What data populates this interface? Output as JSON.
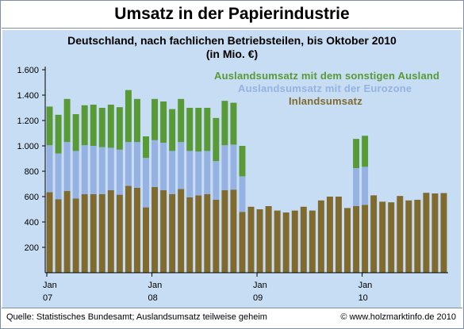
{
  "header": {
    "title": "Umsatz in der Papierindustrie",
    "subtitle_line1": "Deutschland, nach fachlichen Betriebsteilen, bis Oktober 2010",
    "subtitle_line2": "(in Mio. €)"
  },
  "footer": {
    "source": "Quelle: Statistisches Bundesamt;  Auslandsumsatz teilweise geheim",
    "copyright": "© www.holzmarktinfo.de 2010"
  },
  "colors": {
    "inland": "#816a2d",
    "eurozone": "#95b2e2",
    "other_foreign": "#589a36",
    "plot_background": "#c7ddf3"
  },
  "chart_data": {
    "type": "bar",
    "stacked": true,
    "title": "Umsatz in der Papierindustrie",
    "subtitle": "Deutschland, nach fachlichen Betriebsteilen, bis Oktober 2010 (in Mio. €)",
    "ylim": [
      0,
      1600
    ],
    "yticks": [
      "200",
      "400",
      "600",
      "800",
      "1.000",
      "1.200",
      "1.400",
      "1.600"
    ],
    "grid": false,
    "legend_position": "top-right",
    "x_tick_labels": [
      {
        "month": "Jan",
        "year": "07",
        "index": 0
      },
      {
        "month": "Jan",
        "year": "08",
        "index": 12
      },
      {
        "month": "Jan",
        "year": "09",
        "index": 24
      },
      {
        "month": "Jan",
        "year": "10",
        "index": 36
      }
    ],
    "categories": [
      "2007-01",
      "2007-02",
      "2007-03",
      "2007-04",
      "2007-05",
      "2007-06",
      "2007-07",
      "2007-08",
      "2007-09",
      "2007-10",
      "2007-11",
      "2007-12",
      "2008-01",
      "2008-02",
      "2008-03",
      "2008-04",
      "2008-05",
      "2008-06",
      "2008-07",
      "2008-08",
      "2008-09",
      "2008-10",
      "2008-11",
      "2008-12",
      "2009-01",
      "2009-02",
      "2009-03",
      "2009-04",
      "2009-05",
      "2009-06",
      "2009-07",
      "2009-08",
      "2009-09",
      "2009-10",
      "2009-11",
      "2009-12",
      "2010-01",
      "2010-02",
      "2010-03",
      "2010-04",
      "2010-05",
      "2010-06",
      "2010-07",
      "2010-08",
      "2010-09",
      "2010-10"
    ],
    "series": [
      {
        "name": "Inlandsumsatz",
        "values": [
          635,
          580,
          645,
          585,
          620,
          620,
          620,
          650,
          615,
          685,
          670,
          515,
          675,
          650,
          620,
          660,
          595,
          610,
          620,
          575,
          650,
          655,
          480,
          520,
          500,
          525,
          490,
          475,
          490,
          520,
          490,
          570,
          600,
          600,
          510,
          525,
          535,
          610,
          560,
          555,
          605,
          570,
          575,
          630,
          625,
          628
        ]
      },
      {
        "name": "Auslandsumsatz mit der Eurozone",
        "values": [
          370,
          360,
          385,
          375,
          385,
          380,
          370,
          335,
          355,
          345,
          360,
          390,
          370,
          375,
          340,
          370,
          365,
          345,
          340,
          305,
          355,
          355,
          280,
          null,
          null,
          null,
          null,
          null,
          null,
          null,
          null,
          null,
          null,
          null,
          null,
          300,
          300,
          null,
          null,
          null,
          null,
          null,
          null,
          null,
          null,
          null
        ]
      },
      {
        "name": "Auslandsumsatz mit dem sonstigen Ausland",
        "values": [
          305,
          305,
          340,
          290,
          315,
          325,
          310,
          340,
          335,
          410,
          340,
          170,
          325,
          325,
          330,
          340,
          340,
          345,
          340,
          340,
          350,
          330,
          240,
          null,
          null,
          null,
          null,
          null,
          null,
          null,
          null,
          null,
          null,
          null,
          null,
          230,
          245,
          null,
          null,
          null,
          null,
          null,
          null,
          null,
          null,
          null
        ]
      }
    ]
  }
}
